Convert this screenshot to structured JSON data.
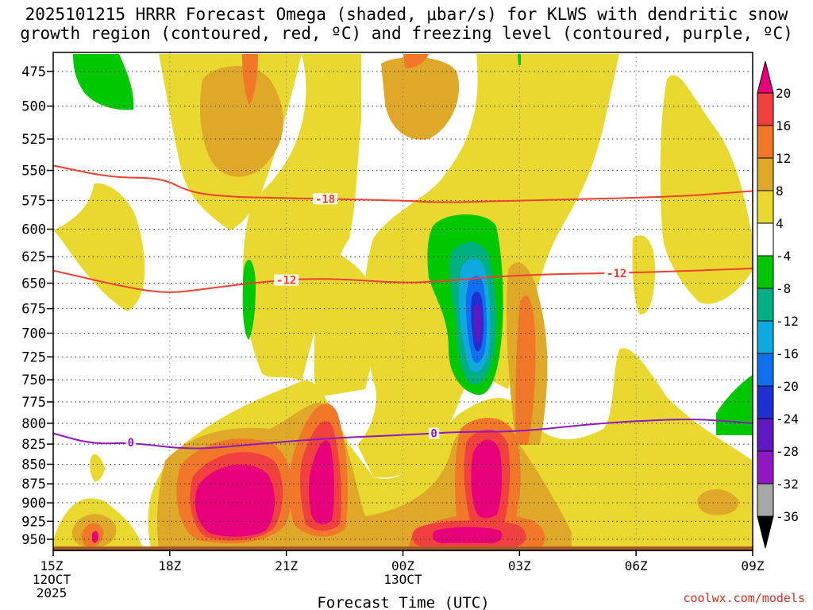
{
  "title": {
    "line1": "2025101215 HRRR Forecast Omega (shaded, μbar/s) for KLWS with dendritic snow",
    "line2": "growth region (contoured, red, ºC) and freezing level (contoured, purple, ºC)"
  },
  "credit": "coolwx.com/models",
  "chart_data": {
    "type": "heatmap",
    "xlabel": "Forecast Time (UTC)",
    "x_hours_range": [
      0,
      18
    ],
    "x_ticks": [
      {
        "hour": 0,
        "lines": [
          "15Z",
          "12OCT",
          "2025"
        ]
      },
      {
        "hour": 3,
        "lines": [
          "18Z"
        ]
      },
      {
        "hour": 6,
        "lines": [
          "21Z"
        ]
      },
      {
        "hour": 9,
        "lines": [
          "00Z",
          "13OCT"
        ]
      },
      {
        "hour": 12,
        "lines": [
          "03Z"
        ]
      },
      {
        "hour": 15,
        "lines": [
          "06Z"
        ]
      },
      {
        "hour": 18,
        "lines": [
          "09Z"
        ]
      }
    ],
    "y_pressure_levels_mb": [
      475,
      500,
      525,
      550,
      575,
      600,
      625,
      650,
      675,
      700,
      725,
      750,
      775,
      800,
      825,
      850,
      875,
      900,
      925,
      950
    ],
    "colorbar": {
      "labels": [
        "20",
        "16",
        "12",
        "8",
        "4",
        "-4",
        "-8",
        "-12",
        "-16",
        "-20",
        "-24",
        "-28",
        "-32",
        "-36"
      ],
      "colors": [
        "#e8007a",
        "#f04040",
        "#f07828",
        "#e0a828",
        "#e8d830",
        "#ffffff",
        "#00c800",
        "#00b080",
        "#10a8e0",
        "#1070f0",
        "#2030d0",
        "#6018c0",
        "#9018c0",
        "#a8a8a8",
        "#000000"
      ]
    },
    "contours": [
      {
        "name": "dendritic -18C",
        "label": "-18",
        "color": "#f04030",
        "points": [
          [
            0,
            546
          ],
          [
            1.5,
            556
          ],
          [
            2.8,
            556
          ],
          [
            3.5,
            568
          ],
          [
            4.5,
            572
          ],
          [
            6,
            573
          ],
          [
            9,
            575
          ],
          [
            10,
            577
          ],
          [
            12,
            575
          ],
          [
            16,
            572
          ],
          [
            18,
            567
          ]
        ]
      },
      {
        "name": "dendritic -12C",
        "label": "-12",
        "color": "#f04030",
        "points": [
          [
            0,
            638
          ],
          [
            2,
            655
          ],
          [
            3,
            660
          ],
          [
            4,
            655
          ],
          [
            5.5,
            648
          ],
          [
            7,
            645
          ],
          [
            9,
            650
          ],
          [
            10,
            648
          ],
          [
            12,
            642
          ],
          [
            15,
            640
          ],
          [
            18,
            636
          ]
        ]
      },
      {
        "name": "freezing level 0C",
        "label": "0",
        "color": "#9018c0",
        "points": [
          [
            0,
            812
          ],
          [
            1,
            825
          ],
          [
            2,
            823
          ],
          [
            3.5,
            832
          ],
          [
            5,
            826
          ],
          [
            7,
            818
          ],
          [
            9,
            814
          ],
          [
            10.5,
            810
          ],
          [
            12,
            810
          ],
          [
            14,
            800
          ],
          [
            16,
            795
          ],
          [
            17,
            796
          ],
          [
            18,
            800
          ]
        ]
      }
    ]
  }
}
